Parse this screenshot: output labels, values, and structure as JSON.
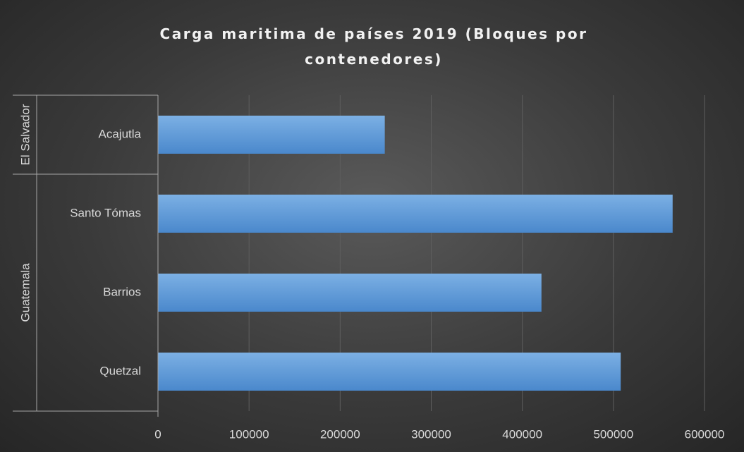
{
  "chart_data": {
    "type": "bar",
    "orientation": "horizontal",
    "title": "Carga maritima de países 2019 (Bloques por contenedores)",
    "groups": [
      {
        "name": "El Salvador",
        "categories": [
          "Acajutla"
        ],
        "values": [
          249000
        ]
      },
      {
        "name": "Guatemala",
        "categories": [
          "Santo Tómas",
          "Barrios",
          "Quetzal"
        ],
        "values": [
          565000,
          421000,
          508000
        ]
      }
    ],
    "color": "#5b9bd5",
    "xlim": [
      0,
      600000
    ],
    "xticks": [
      0,
      100000,
      200000,
      300000,
      400000,
      500000,
      600000
    ],
    "grid": true
  }
}
